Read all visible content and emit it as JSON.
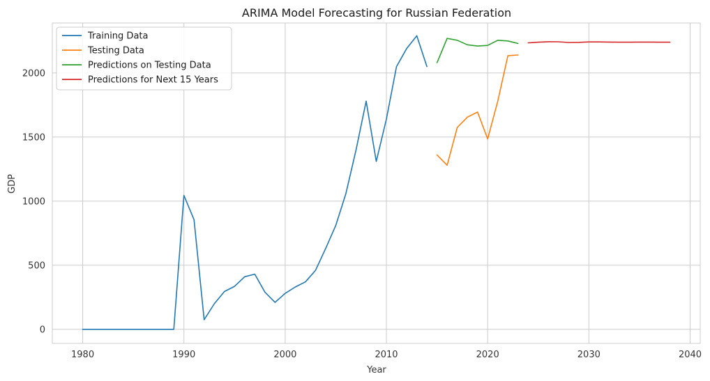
{
  "chart_data": {
    "type": "line",
    "title": "ARIMA Model Forecasting for Russian Federation",
    "xlabel": "Year",
    "ylabel": "GDP",
    "xlim": [
      1977,
      2041
    ],
    "ylim": [
      -110,
      2390
    ],
    "xticks": [
      1980,
      1990,
      2000,
      2010,
      2020,
      2030,
      2040
    ],
    "yticks": [
      0,
      500,
      1000,
      1500,
      2000
    ],
    "grid": true,
    "legend_position": "upper-left",
    "series": [
      {
        "name": "Training Data",
        "color": "#1f77b4",
        "x": [
          1980,
          1981,
          1982,
          1983,
          1984,
          1985,
          1986,
          1987,
          1988,
          1989,
          1990,
          1991,
          1992,
          1993,
          1994,
          1995,
          1996,
          1997,
          1998,
          1999,
          2000,
          2001,
          2002,
          2003,
          2004,
          2005,
          2006,
          2007,
          2008,
          2009,
          2010,
          2011,
          2012,
          2013,
          2014
        ],
        "y": [
          0,
          0,
          0,
          0,
          0,
          0,
          0,
          0,
          0,
          0,
          1045,
          855,
          75,
          200,
          295,
          335,
          410,
          430,
          290,
          210,
          280,
          330,
          370,
          460,
          630,
          810,
          1060,
          1400,
          1780,
          1310,
          1640,
          2050,
          2190,
          2290,
          2050
        ]
      },
      {
        "name": "Testing Data",
        "color": "#ff7f0e",
        "x": [
          2015,
          2016,
          2017,
          2018,
          2019,
          2020,
          2021,
          2022,
          2023
        ],
        "y": [
          1360,
          1280,
          1575,
          1655,
          1695,
          1485,
          1780,
          2135,
          2140
        ]
      },
      {
        "name": "Predictions on Testing Data",
        "color": "#2ca02c",
        "x": [
          2015,
          2016,
          2017,
          2018,
          2019,
          2020,
          2021,
          2022,
          2023
        ],
        "y": [
          2080,
          2270,
          2255,
          2220,
          2210,
          2215,
          2255,
          2250,
          2230
        ]
      },
      {
        "name": "Predictions for Next 15 Years",
        "color": "#d62728",
        "x": [
          2024,
          2025,
          2026,
          2027,
          2028,
          2029,
          2030,
          2031,
          2032,
          2033,
          2034,
          2035,
          2036,
          2037,
          2038
        ],
        "y": [
          2235,
          2240,
          2244,
          2243,
          2238,
          2239,
          2242,
          2242,
          2241,
          2240,
          2240,
          2241,
          2241,
          2240,
          2240
        ]
      }
    ]
  }
}
